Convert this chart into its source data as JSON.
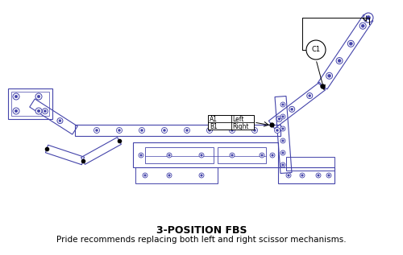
{
  "title": "3-POSITION FBS",
  "subtitle": "Pride recommends replacing both left and right scissor mechanisms.",
  "title_fontsize": 9,
  "subtitle_fontsize": 7.5,
  "line_color": "#4444aa",
  "text_color": "#000000",
  "bg_color": "#ffffff",
  "figsize": [
    5.0,
    3.17
  ],
  "dpi": 100,
  "label_c1": "C1",
  "label_a1": "A1",
  "label_b1": "B1",
  "label_left": "Left",
  "label_right": "Right"
}
